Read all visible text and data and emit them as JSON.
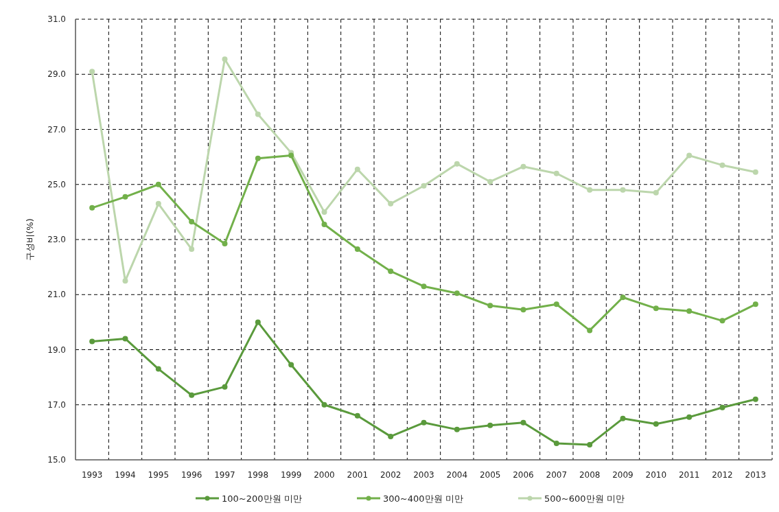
{
  "chart_data": {
    "type": "line",
    "ylabel": "구성비(%)",
    "categories": [
      "1993",
      "1994",
      "1995",
      "1996",
      "1997",
      "1998",
      "1999",
      "2000",
      "2001",
      "2002",
      "2003",
      "2004",
      "2005",
      "2006",
      "2007",
      "2008",
      "2009",
      "2010",
      "2011",
      "2012",
      "2013"
    ],
    "series": [
      {
        "name": "100~200만원 미만",
        "color": "#5a9a3c",
        "values": [
          19.3,
          19.4,
          18.3,
          17.35,
          17.65,
          20.0,
          18.45,
          17.0,
          16.6,
          15.85,
          16.35,
          16.1,
          16.25,
          16.35,
          15.6,
          15.55,
          16.5,
          16.3,
          16.55,
          16.9,
          17.2
        ]
      },
      {
        "name": "300~400만원 미만",
        "color": "#72b04a",
        "values": [
          24.15,
          24.55,
          25.0,
          23.65,
          22.85,
          25.95,
          26.05,
          23.55,
          22.65,
          21.85,
          21.3,
          21.05,
          20.6,
          20.45,
          20.65,
          19.7,
          20.9,
          20.5,
          20.4,
          20.05,
          20.65
        ]
      },
      {
        "name": "500~600만원 미만",
        "color": "#bcd6ac",
        "values": [
          29.1,
          21.5,
          24.3,
          22.65,
          29.55,
          27.55,
          26.15,
          24.0,
          25.55,
          24.3,
          24.95,
          25.75,
          25.1,
          25.65,
          25.4,
          24.8,
          24.8,
          24.7,
          26.05,
          25.7,
          25.45
        ]
      }
    ],
    "ylim": [
      15,
      31
    ],
    "yticks": [
      {
        "value": 15,
        "label": "15.0"
      },
      {
        "value": 17,
        "label": "17.0"
      },
      {
        "value": 19,
        "label": "19.0"
      },
      {
        "value": 21,
        "label": "21.0"
      },
      {
        "value": 23,
        "label": "23.0"
      },
      {
        "value": 25,
        "label": "25.0"
      },
      {
        "value": 27,
        "label": "27.0"
      },
      {
        "value": 29,
        "label": "29.0"
      },
      {
        "value": 31,
        "label": "31.0"
      }
    ],
    "grid": true,
    "legend": "bottom",
    "marker": "circle",
    "line_style": "solid"
  }
}
